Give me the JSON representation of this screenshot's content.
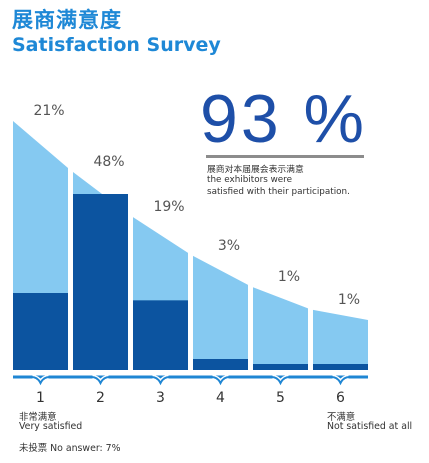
{
  "header": {
    "title_cn": "展商满意度",
    "title_en": "Satisfaction Survey"
  },
  "headline": {
    "value": "93 %",
    "note_cn": "展商对本届展会表示满意",
    "note_en_1": "the exhibitors were",
    "note_en_2": "satisfied with their participation."
  },
  "footer": {
    "left_cn": "非常满意",
    "left_en": "Very satisfied",
    "right_cn": "不满意",
    "right_en": "Not satisfied at all",
    "no_answer": "未投票 No answer: 7%"
  },
  "colors": {
    "light": "#85c9f1",
    "dark": "#0c54a0",
    "axis": "#1f86d3",
    "text": "#555555"
  },
  "chart_data": {
    "type": "bar",
    "categories": [
      "1",
      "2",
      "3",
      "4",
      "5",
      "6"
    ],
    "values": [
      21,
      48,
      19,
      3,
      1,
      1
    ],
    "value_labels": [
      "21%",
      "48%",
      "19%",
      "3%",
      "1%",
      "1%"
    ],
    "xlabel": "",
    "ylabel": "",
    "ylim": [
      0,
      60
    ],
    "legend": "none",
    "grid": false
  }
}
